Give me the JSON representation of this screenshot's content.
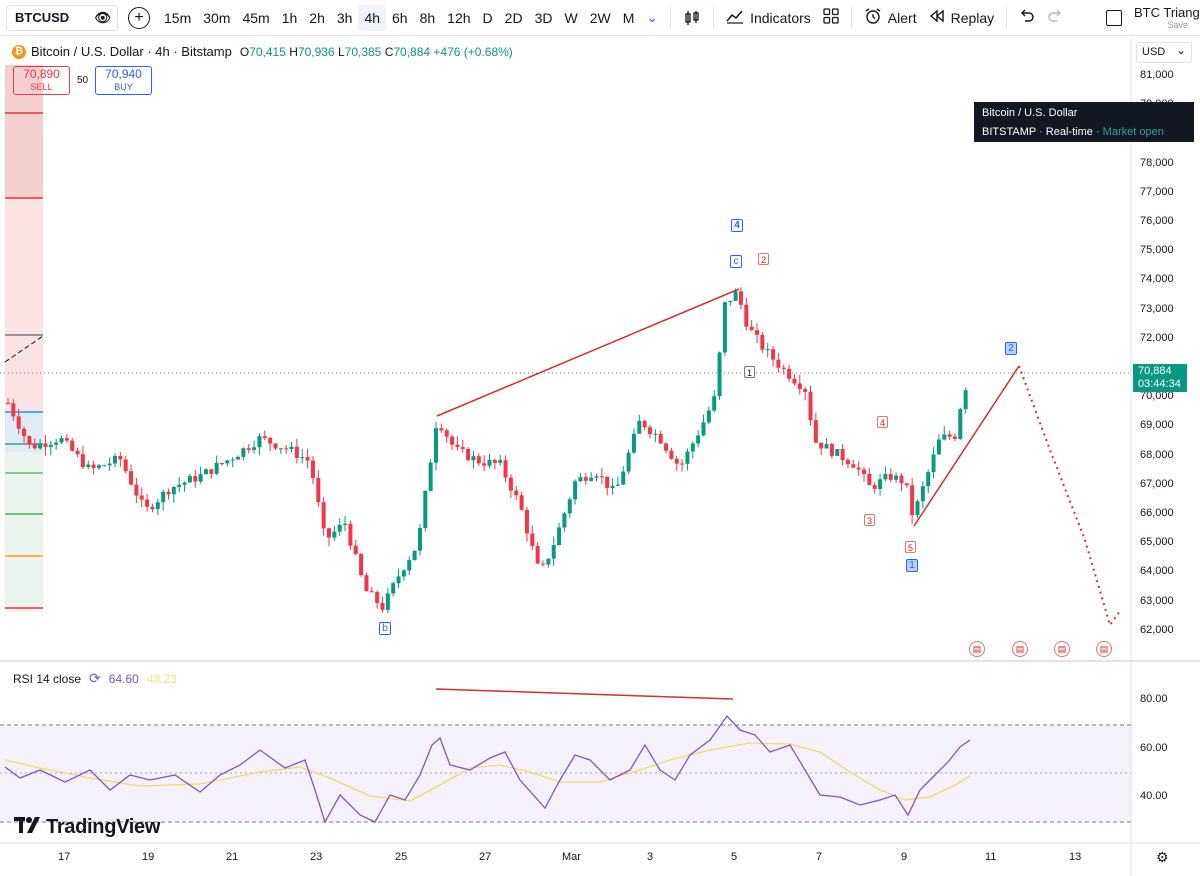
{
  "toolbar": {
    "symbol": "BTCUSD",
    "intervals": [
      "15m",
      "30m",
      "45m",
      "1h",
      "2h",
      "3h",
      "4h",
      "6h",
      "8h",
      "12h",
      "D",
      "2D",
      "3D",
      "W",
      "2W",
      "M"
    ],
    "active_interval": "4h",
    "indicators_label": "Indicators",
    "alert_label": "Alert",
    "replay_label": "Replay",
    "layout_name": "BTC Triangle",
    "layout_save": "Save"
  },
  "legend": {
    "title": "Bitcoin / U.S. Dollar · 4h · Bitstamp",
    "o_label": "O",
    "o": "70,415",
    "h_label": "H",
    "h": "70,936",
    "l_label": "L",
    "l": "70,385",
    "c_label": "C",
    "c": "70,884",
    "change": "+476 (+0.68%)"
  },
  "trade": {
    "sell_price": "70,890",
    "sell_label": "SELL",
    "spread": "50",
    "buy_price": "70,940",
    "buy_label": "BUY"
  },
  "axis": {
    "currency": "USD",
    "price_ticks": [
      "81,000",
      "79,000",
      "78,000",
      "77,000",
      "76,000",
      "75,000",
      "74,000",
      "73,000",
      "72,000",
      "71,000",
      "70,000",
      "69,000",
      "68,000",
      "67,000",
      "66,000",
      "65,000",
      "64,000",
      "63,000",
      "62,000"
    ],
    "last_price": "70,884",
    "countdown": "03:44:34",
    "rsi_ticks": [
      "80.00",
      "60.00",
      "40.00"
    ],
    "date_ticks": [
      "17",
      "19",
      "21",
      "23",
      "25",
      "27",
      "Mar",
      "3",
      "5",
      "7",
      "9",
      "11",
      "13"
    ]
  },
  "tooltip": {
    "line1": "Bitcoin / U.S. Dollar",
    "exchange": "BITSTAMP",
    "mode": "Real-time",
    "status": "Market open"
  },
  "waves": {
    "b": "b",
    "c": "c",
    "w4": "4",
    "w1": "1",
    "w2": "2",
    "m1": "1",
    "m2": "2",
    "m3": "3",
    "m4": "4",
    "m5": "5"
  },
  "rsi": {
    "label": "RSI 14 close",
    "value": "64.60",
    "ma_value": "48.23"
  },
  "brand": {
    "logo": "TradingView"
  },
  "colors": {
    "up": "#089981",
    "down": "#f23645",
    "rsi_line": "#7e57c2",
    "rsi_ma": "#f7d774",
    "wave_line": "#d32f2f"
  }
}
